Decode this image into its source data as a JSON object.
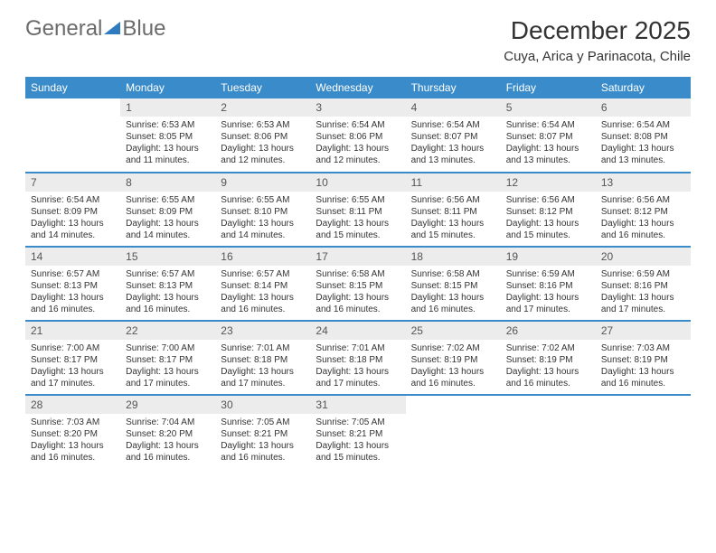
{
  "logo": {
    "t1": "General",
    "t2": "Blue"
  },
  "title": "December 2025",
  "location": "Cuya, Arica y Parinacota, Chile",
  "colors": {
    "header_bg": "#3a8bc9",
    "header_fg": "#ffffff",
    "row_sep": "#3a8bc9",
    "daynum_bg": "#ececec",
    "logo_accent": "#2f7bbf"
  },
  "weekdays": [
    "Sunday",
    "Monday",
    "Tuesday",
    "Wednesday",
    "Thursday",
    "Friday",
    "Saturday"
  ],
  "grid": [
    [
      {
        "n": "",
        "sr": "",
        "ss": "",
        "dl": "",
        "empty": true
      },
      {
        "n": "1",
        "sr": "Sunrise: 6:53 AM",
        "ss": "Sunset: 8:05 PM",
        "dl": "Daylight: 13 hours and 11 minutes."
      },
      {
        "n": "2",
        "sr": "Sunrise: 6:53 AM",
        "ss": "Sunset: 8:06 PM",
        "dl": "Daylight: 13 hours and 12 minutes."
      },
      {
        "n": "3",
        "sr": "Sunrise: 6:54 AM",
        "ss": "Sunset: 8:06 PM",
        "dl": "Daylight: 13 hours and 12 minutes."
      },
      {
        "n": "4",
        "sr": "Sunrise: 6:54 AM",
        "ss": "Sunset: 8:07 PM",
        "dl": "Daylight: 13 hours and 13 minutes."
      },
      {
        "n": "5",
        "sr": "Sunrise: 6:54 AM",
        "ss": "Sunset: 8:07 PM",
        "dl": "Daylight: 13 hours and 13 minutes."
      },
      {
        "n": "6",
        "sr": "Sunrise: 6:54 AM",
        "ss": "Sunset: 8:08 PM",
        "dl": "Daylight: 13 hours and 13 minutes."
      }
    ],
    [
      {
        "n": "7",
        "sr": "Sunrise: 6:54 AM",
        "ss": "Sunset: 8:09 PM",
        "dl": "Daylight: 13 hours and 14 minutes."
      },
      {
        "n": "8",
        "sr": "Sunrise: 6:55 AM",
        "ss": "Sunset: 8:09 PM",
        "dl": "Daylight: 13 hours and 14 minutes."
      },
      {
        "n": "9",
        "sr": "Sunrise: 6:55 AM",
        "ss": "Sunset: 8:10 PM",
        "dl": "Daylight: 13 hours and 14 minutes."
      },
      {
        "n": "10",
        "sr": "Sunrise: 6:55 AM",
        "ss": "Sunset: 8:11 PM",
        "dl": "Daylight: 13 hours and 15 minutes."
      },
      {
        "n": "11",
        "sr": "Sunrise: 6:56 AM",
        "ss": "Sunset: 8:11 PM",
        "dl": "Daylight: 13 hours and 15 minutes."
      },
      {
        "n": "12",
        "sr": "Sunrise: 6:56 AM",
        "ss": "Sunset: 8:12 PM",
        "dl": "Daylight: 13 hours and 15 minutes."
      },
      {
        "n": "13",
        "sr": "Sunrise: 6:56 AM",
        "ss": "Sunset: 8:12 PM",
        "dl": "Daylight: 13 hours and 16 minutes."
      }
    ],
    [
      {
        "n": "14",
        "sr": "Sunrise: 6:57 AM",
        "ss": "Sunset: 8:13 PM",
        "dl": "Daylight: 13 hours and 16 minutes."
      },
      {
        "n": "15",
        "sr": "Sunrise: 6:57 AM",
        "ss": "Sunset: 8:13 PM",
        "dl": "Daylight: 13 hours and 16 minutes."
      },
      {
        "n": "16",
        "sr": "Sunrise: 6:57 AM",
        "ss": "Sunset: 8:14 PM",
        "dl": "Daylight: 13 hours and 16 minutes."
      },
      {
        "n": "17",
        "sr": "Sunrise: 6:58 AM",
        "ss": "Sunset: 8:15 PM",
        "dl": "Daylight: 13 hours and 16 minutes."
      },
      {
        "n": "18",
        "sr": "Sunrise: 6:58 AM",
        "ss": "Sunset: 8:15 PM",
        "dl": "Daylight: 13 hours and 16 minutes."
      },
      {
        "n": "19",
        "sr": "Sunrise: 6:59 AM",
        "ss": "Sunset: 8:16 PM",
        "dl": "Daylight: 13 hours and 17 minutes."
      },
      {
        "n": "20",
        "sr": "Sunrise: 6:59 AM",
        "ss": "Sunset: 8:16 PM",
        "dl": "Daylight: 13 hours and 17 minutes."
      }
    ],
    [
      {
        "n": "21",
        "sr": "Sunrise: 7:00 AM",
        "ss": "Sunset: 8:17 PM",
        "dl": "Daylight: 13 hours and 17 minutes."
      },
      {
        "n": "22",
        "sr": "Sunrise: 7:00 AM",
        "ss": "Sunset: 8:17 PM",
        "dl": "Daylight: 13 hours and 17 minutes."
      },
      {
        "n": "23",
        "sr": "Sunrise: 7:01 AM",
        "ss": "Sunset: 8:18 PM",
        "dl": "Daylight: 13 hours and 17 minutes."
      },
      {
        "n": "24",
        "sr": "Sunrise: 7:01 AM",
        "ss": "Sunset: 8:18 PM",
        "dl": "Daylight: 13 hours and 17 minutes."
      },
      {
        "n": "25",
        "sr": "Sunrise: 7:02 AM",
        "ss": "Sunset: 8:19 PM",
        "dl": "Daylight: 13 hours and 16 minutes."
      },
      {
        "n": "26",
        "sr": "Sunrise: 7:02 AM",
        "ss": "Sunset: 8:19 PM",
        "dl": "Daylight: 13 hours and 16 minutes."
      },
      {
        "n": "27",
        "sr": "Sunrise: 7:03 AM",
        "ss": "Sunset: 8:19 PM",
        "dl": "Daylight: 13 hours and 16 minutes."
      }
    ],
    [
      {
        "n": "28",
        "sr": "Sunrise: 7:03 AM",
        "ss": "Sunset: 8:20 PM",
        "dl": "Daylight: 13 hours and 16 minutes."
      },
      {
        "n": "29",
        "sr": "Sunrise: 7:04 AM",
        "ss": "Sunset: 8:20 PM",
        "dl": "Daylight: 13 hours and 16 minutes."
      },
      {
        "n": "30",
        "sr": "Sunrise: 7:05 AM",
        "ss": "Sunset: 8:21 PM",
        "dl": "Daylight: 13 hours and 16 minutes."
      },
      {
        "n": "31",
        "sr": "Sunrise: 7:05 AM",
        "ss": "Sunset: 8:21 PM",
        "dl": "Daylight: 13 hours and 15 minutes."
      },
      {
        "n": "",
        "sr": "",
        "ss": "",
        "dl": "",
        "empty": true
      },
      {
        "n": "",
        "sr": "",
        "ss": "",
        "dl": "",
        "empty": true
      },
      {
        "n": "",
        "sr": "",
        "ss": "",
        "dl": "",
        "empty": true
      }
    ]
  ]
}
